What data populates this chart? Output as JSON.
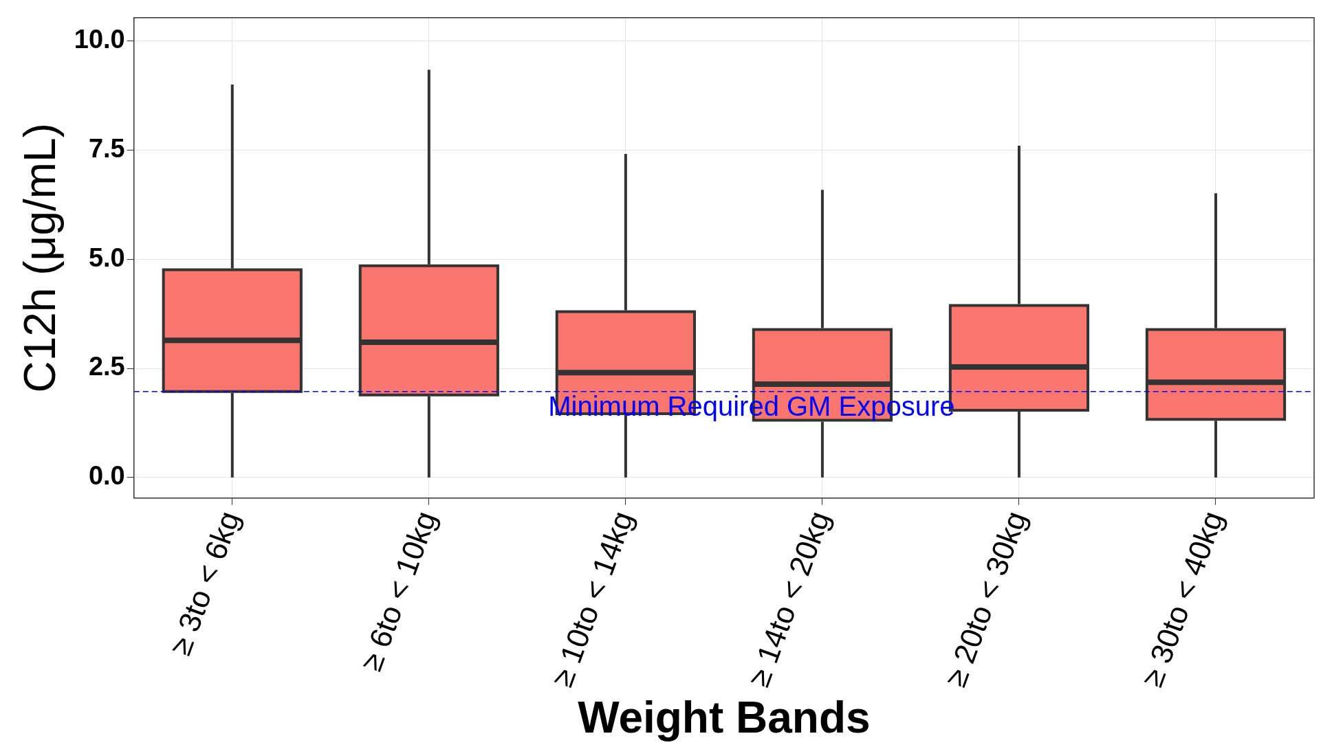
{
  "chart_data": {
    "type": "box",
    "xlabel": "Weight Bands",
    "ylabel": "C12h (μg/mL)",
    "categories": [
      "≥ 3to < 6kg",
      "≥ 6to < 10kg",
      "≥ 10to < 14kg",
      "≥ 14to < 20kg",
      "≥ 20to < 30kg",
      "≥ 30to < 40kg"
    ],
    "color": "#f8766d",
    "boxes": [
      {
        "low": 0,
        "q1": 1.97,
        "median": 3.14,
        "q3": 4.76,
        "high": 9.0
      },
      {
        "low": 0,
        "q1": 1.89,
        "median": 3.1,
        "q3": 4.85,
        "high": 9.34
      },
      {
        "low": 0,
        "q1": 1.46,
        "median": 2.4,
        "q3": 3.8,
        "high": 7.41
      },
      {
        "low": 0,
        "q1": 1.31,
        "median": 2.14,
        "q3": 3.39,
        "high": 6.59
      },
      {
        "low": 0,
        "q1": 1.54,
        "median": 2.53,
        "q3": 3.94,
        "high": 7.6
      },
      {
        "low": 0,
        "q1": 1.33,
        "median": 2.18,
        "q3": 3.39,
        "high": 6.51
      }
    ],
    "ylim": [
      -0.47,
      10.53
    ],
    "yticks": [
      {
        "value": 0,
        "label": "0.0"
      },
      2.5,
      {
        "value": 5,
        "label": "5.0"
      },
      7.5,
      {
        "value": 10,
        "label": "10.0"
      }
    ],
    "grid": true,
    "legend": false,
    "ref_lines": [
      {
        "axis": "y",
        "value": 1.97,
        "label": "Minimum Required GM Exposure",
        "color": "#0000ff",
        "line_style": "dashed"
      }
    ]
  }
}
